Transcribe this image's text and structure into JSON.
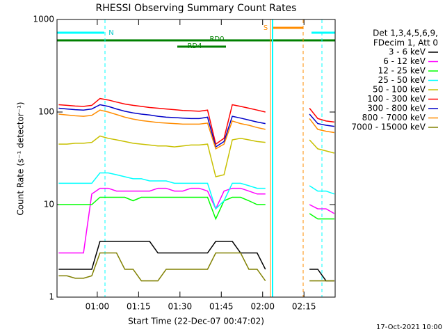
{
  "chart_data": {
    "type": "line",
    "title": "RHESSI Observing Summary Count Rates",
    "xlabel": "Start Time (22-Dec-07 00:47:02)",
    "ylabel": "Count Rate (s⁻¹ detector⁻¹)",
    "legend_header": [
      "Det 1,3,4,5,6,9,",
      "FDecim 1, Att 0"
    ],
    "annotations": [
      "N",
      "RD0",
      "RD4",
      "S"
    ],
    "footer": "17-Oct-2021 10:00",
    "log_y": true,
    "xlim": [
      45.4,
      146.3
    ],
    "xticks": [
      {
        "value": 60,
        "label": "01:00"
      },
      {
        "value": 75,
        "label": "01:15"
      },
      {
        "value": 90,
        "label": "01:30"
      },
      {
        "value": 105,
        "label": "01:45"
      },
      {
        "value": 120,
        "label": "02:00"
      },
      {
        "value": 135,
        "label": "02:15"
      }
    ],
    "ylim": [
      1,
      1000
    ],
    "yticks": [
      1,
      10,
      100,
      1000
    ],
    "x": [
      46,
      49,
      52,
      55,
      58,
      61,
      64,
      67,
      70,
      73,
      76,
      79,
      82,
      85,
      88,
      91,
      94,
      97,
      100,
      103,
      106,
      109,
      112,
      115,
      118,
      121,
      129,
      137,
      140,
      143,
      146
    ],
    "series": [
      {
        "name": "3 - 6 keV",
        "color": "#000000",
        "values": [
          2,
          2,
          2,
          2,
          2,
          4,
          4,
          4,
          4,
          4,
          4,
          4,
          3,
          3,
          3,
          3,
          3,
          3,
          3,
          4,
          4,
          4,
          3,
          3,
          3,
          2,
          null,
          2,
          2,
          1.5,
          1.5
        ]
      },
      {
        "name": "6 - 12 keV",
        "color": "#ff00ff",
        "values": [
          3,
          3,
          3,
          3,
          13,
          15,
          15,
          14,
          14,
          14,
          14,
          14,
          15,
          15,
          14,
          14,
          15,
          15,
          14,
          9,
          14,
          15,
          15,
          14,
          13,
          13,
          null,
          10,
          9,
          9,
          8
        ]
      },
      {
        "name": "12 - 25 keV",
        "color": "#00ff00",
        "values": [
          10,
          10,
          10,
          10,
          10,
          12,
          12,
          12,
          12,
          11,
          12,
          12,
          12,
          12,
          12,
          12,
          12,
          12,
          12,
          7,
          11,
          12,
          12,
          11,
          10,
          10,
          null,
          8,
          7,
          7,
          7
        ]
      },
      {
        "name": "25 - 50 keV",
        "color": "#00ffff",
        "values": [
          17,
          17,
          17,
          17,
          17,
          22,
          22,
          21,
          20,
          19,
          19,
          18,
          18,
          18,
          17,
          17,
          17,
          17,
          17,
          9,
          11,
          17,
          17,
          16,
          15,
          15,
          null,
          16,
          14,
          14,
          13
        ]
      },
      {
        "name": "50 - 100 keV",
        "color": "#c8c000",
        "values": [
          45,
          45,
          46,
          46,
          47,
          55,
          52,
          50,
          48,
          46,
          45,
          44,
          43,
          43,
          42,
          43,
          44,
          44,
          45,
          20,
          21,
          50,
          52,
          50,
          48,
          47,
          null,
          50,
          40,
          38,
          36
        ]
      },
      {
        "name": "100 - 300 keV",
        "color": "#ff0000",
        "values": [
          120,
          118,
          116,
          115,
          118,
          140,
          135,
          128,
          122,
          118,
          115,
          112,
          110,
          108,
          106,
          104,
          103,
          102,
          105,
          45,
          52,
          120,
          115,
          110,
          105,
          100,
          null,
          110,
          85,
          80,
          78
        ]
      },
      {
        "name": "300 - 800 keV",
        "color": "#0000c8",
        "values": [
          110,
          108,
          106,
          105,
          108,
          120,
          115,
          108,
          102,
          98,
          95,
          93,
          90,
          88,
          87,
          86,
          85,
          85,
          88,
          42,
          48,
          90,
          86,
          82,
          78,
          75,
          null,
          95,
          75,
          72,
          70
        ]
      },
      {
        "name": "800 - 7000 keV",
        "color": "#ff8c00",
        "values": [
          95,
          93,
          91,
          90,
          92,
          105,
          100,
          94,
          88,
          84,
          81,
          79,
          77,
          76,
          75,
          74,
          74,
          74,
          76,
          40,
          45,
          80,
          75,
          72,
          68,
          65,
          null,
          85,
          65,
          62,
          60
        ]
      },
      {
        "name": "7000 - 15000 keV",
        "color": "#808000",
        "values": [
          1.7,
          1.7,
          1.6,
          1.6,
          1.7,
          3,
          3,
          3,
          2,
          2,
          1.5,
          1.5,
          1.5,
          2,
          2,
          2,
          2,
          2,
          2,
          3,
          3,
          3,
          3,
          2,
          2,
          1.5,
          null,
          1.5,
          1.5,
          1.5,
          1.5
        ]
      }
    ]
  }
}
